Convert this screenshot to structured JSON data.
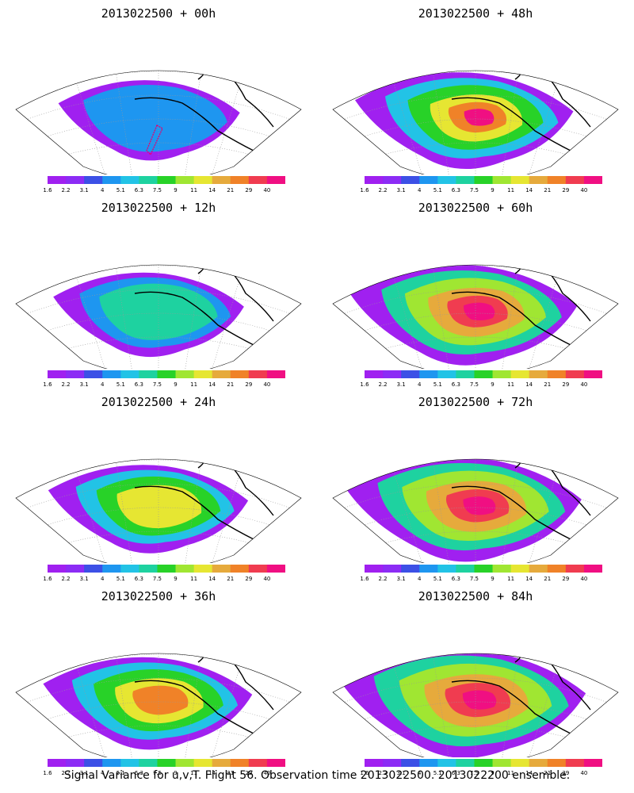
{
  "caption": "Signal Variance for u,v,T. Flight 56. Observation time 2013022500. 2013022200 ensemble.",
  "colorbar": {
    "labels": [
      "1.6",
      "2.2",
      "3.1",
      "4",
      "5.1",
      "6.3",
      "7.5",
      "9",
      "11",
      "14",
      "21",
      "29",
      "40"
    ],
    "colors": [
      "#a020f0",
      "#8c2cf5",
      "#3c50e6",
      "#1e96f0",
      "#22c3e6",
      "#1ed2a0",
      "#28d228",
      "#a0e632",
      "#e6e632",
      "#e6aa3c",
      "#f08228",
      "#f03c50",
      "#f00f82"
    ]
  },
  "panels": [
    {
      "title": "2013022500 + 00h",
      "intensity": 1,
      "flight_track": true
    },
    {
      "title": "2013022500 + 48h",
      "intensity": 5,
      "flight_track": false
    },
    {
      "title": "2013022500 + 12h",
      "intensity": 2,
      "flight_track": false
    },
    {
      "title": "2013022500 + 60h",
      "intensity": 6,
      "flight_track": false
    },
    {
      "title": "2013022500 + 24h",
      "intensity": 3,
      "flight_track": false
    },
    {
      "title": "2013022500 + 72h",
      "intensity": 7,
      "flight_track": false
    },
    {
      "title": "2013022500 + 36h",
      "intensity": 4,
      "flight_track": false
    },
    {
      "title": "2013022500 + 84h",
      "intensity": 8,
      "flight_track": false
    }
  ]
}
